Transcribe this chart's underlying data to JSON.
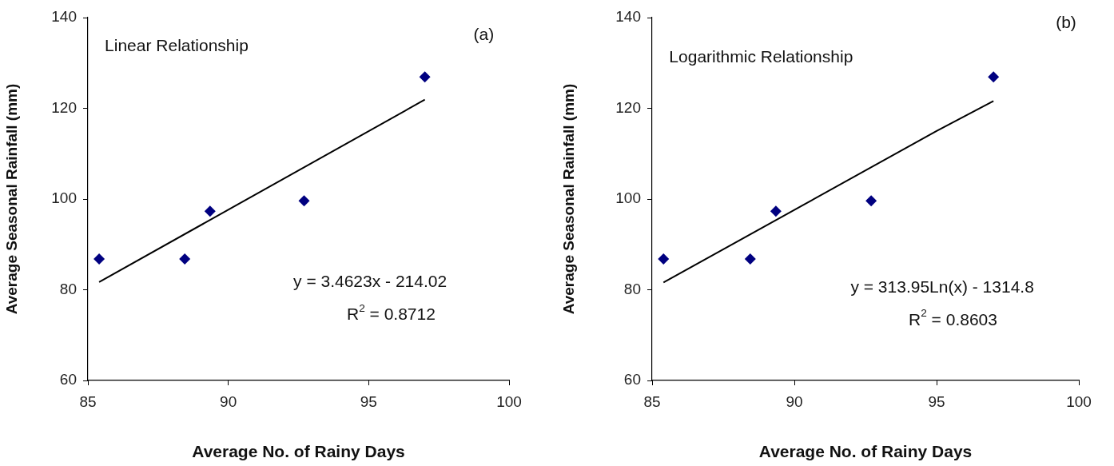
{
  "chart_data": [
    {
      "type": "scatter",
      "xlabel": "Average No. of Rainy Days",
      "ylabel": "Average Seasonal Rainfall (mm)",
      "xlim": [
        85,
        100
      ],
      "xticks": [
        85,
        90,
        95,
        100
      ],
      "ylim": [
        60,
        140
      ],
      "yticks": [
        60,
        80,
        100,
        120,
        140
      ],
      "grid": false,
      "legend": false,
      "marker": "diamond",
      "annotations": [
        "Linear Relationship",
        "(a)",
        "y = 3.4623x - 214.02",
        "R$^{2}$ = 0.8712"
      ],
      "series": [
        {
          "type": "scatter",
          "color": "#000080",
          "x": [
            85.4,
            88.45,
            89.35,
            92.7,
            97.0
          ],
          "values": [
            86.8,
            86.8,
            97.3,
            99.6,
            126.9
          ]
        },
        {
          "type": "line",
          "color": "#000000",
          "marker": "none",
          "x": [
            85.4,
            97.0
          ],
          "values": [
            81.7,
            121.9
          ]
        }
      ]
    },
    {
      "type": "scatter",
      "xlabel": "Average No. of Rainy Days",
      "ylabel": "Average Seasonal Rainfall (mm)",
      "xlim": [
        85,
        100
      ],
      "xticks": [
        85,
        90,
        95,
        100
      ],
      "ylim": [
        60,
        140
      ],
      "yticks": [
        60,
        80,
        100,
        120,
        140
      ],
      "grid": false,
      "legend": false,
      "marker": "diamond",
      "annotations": [
        "Logarithmic Relationship",
        "(b)",
        "y = 313.95Ln(x) - 1314.8",
        "R$^{2}$ = 0.8603"
      ],
      "series": [
        {
          "type": "scatter",
          "color": "#000080",
          "x": [
            85.4,
            88.45,
            89.35,
            92.7,
            97.0
          ],
          "values": [
            86.8,
            86.8,
            97.3,
            99.6,
            126.9
          ]
        },
        {
          "type": "line",
          "color": "#000000",
          "marker": "none",
          "x": [
            85.4,
            90,
            95,
            97.0
          ],
          "values": [
            81.6,
            97.6,
            115.0,
            121.6
          ]
        }
      ]
    }
  ]
}
